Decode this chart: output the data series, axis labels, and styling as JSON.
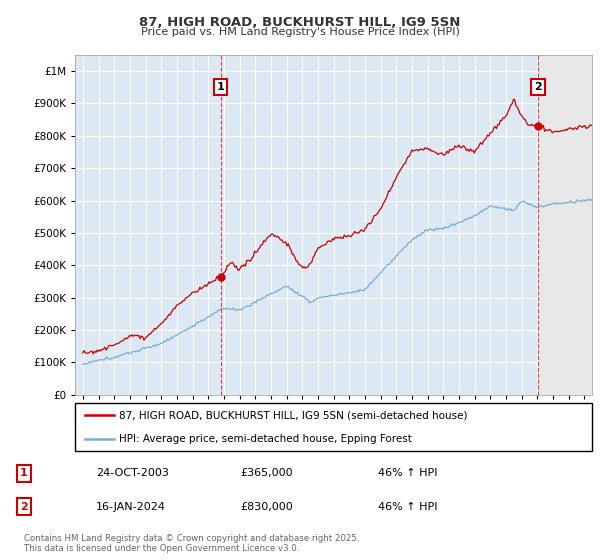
{
  "title": "87, HIGH ROAD, BUCKHURST HILL, IG9 5SN",
  "subtitle": "Price paid vs. HM Land Registry's House Price Index (HPI)",
  "background_color": "#ffffff",
  "plot_bg_color": "#dde8f5",
  "grid_color": "#ffffff",
  "red_color": "#cc0000",
  "blue_color": "#7aadd4",
  "marker1_x": 2003.8,
  "marker2_x": 2024.05,
  "legend1": "87, HIGH ROAD, BUCKHURST HILL, IG9 5SN (semi-detached house)",
  "legend2": "HPI: Average price, semi-detached house, Epping Forest",
  "transaction1_date": "24-OCT-2003",
  "transaction1_price": "£365,000",
  "transaction1_hpi": "46% ↑ HPI",
  "transaction2_date": "16-JAN-2024",
  "transaction2_price": "£830,000",
  "transaction2_hpi": "46% ↑ HPI",
  "footer": "Contains HM Land Registry data © Crown copyright and database right 2025.\nThis data is licensed under the Open Government Licence v3.0.",
  "ylim_min": 0,
  "ylim_max": 1050000,
  "xmin": 1994.5,
  "xmax": 2027.5
}
